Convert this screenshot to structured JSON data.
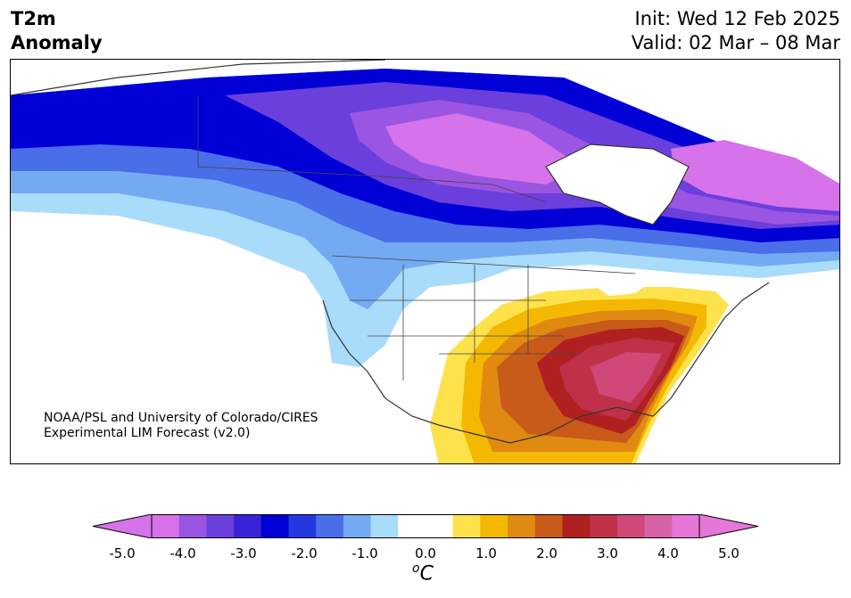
{
  "header": {
    "variable_line1": "T2m",
    "variable_line2": "Anomaly",
    "init_text": "Init: Wed 12 Feb 2025",
    "valid_text": "Valid: 02 Mar – 08 Mar"
  },
  "credit": {
    "line1": "NOAA/PSL and University of Colorado/CIRES",
    "line2": "Experimental LIM Forecast (v2.0)"
  },
  "colorbar": {
    "ticks": [
      "-5.0",
      "-4.0",
      "-3.0",
      "-2.0",
      "-1.0",
      "0.0",
      "1.0",
      "2.0",
      "3.0",
      "4.0",
      "5.0"
    ],
    "unit_base": "C",
    "unit_sup": "o",
    "colors": [
      "#d672ea",
      "#9a55e2",
      "#6b3fdc",
      "#3a22d8",
      "#0000d6",
      "#2438e2",
      "#4a6de8",
      "#74aaf2",
      "#a9dbfb",
      "#ffffff",
      "#ffffff",
      "#fde24c",
      "#f4b800",
      "#e08a12",
      "#c85a1a",
      "#b02020",
      "#c03048",
      "#d04878",
      "#d862a8",
      "#e676d8"
    ]
  }
}
